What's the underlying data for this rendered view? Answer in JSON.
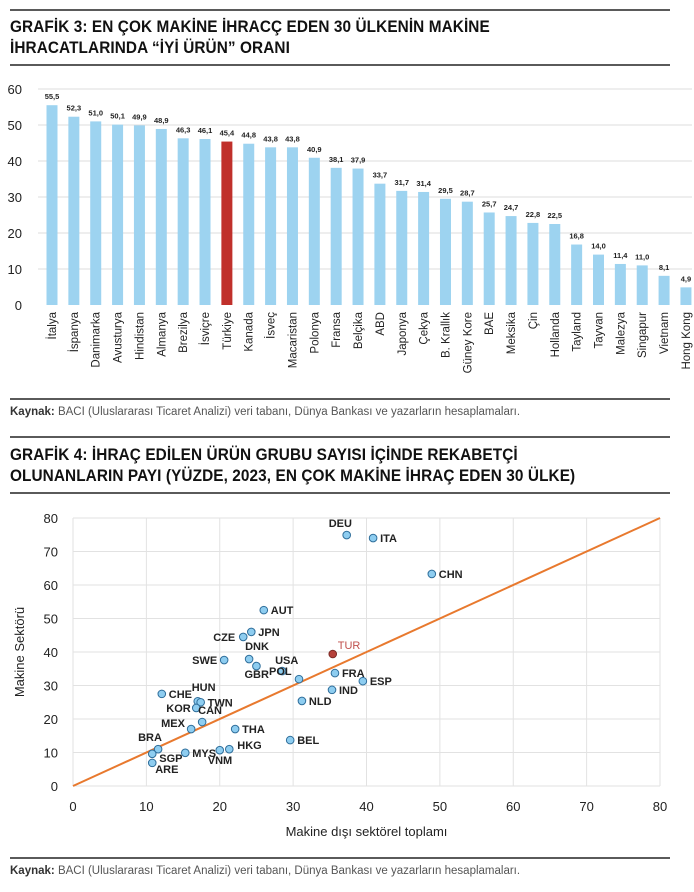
{
  "chart_data": [
    {
      "type": "bar",
      "title_line1": "GRAFİK 3: EN ÇOK MAKİNE İHRACÇ EDEN 30 ÜLKENİN MAKİNE",
      "title_line2": "İHRACATLARINDA “İYİ ÜRÜN” ORANI",
      "categories": [
        "İtalya",
        "İspanya",
        "Danimarka",
        "Avusturya",
        "Hindistan",
        "Almanya",
        "Brezilya",
        "İsviçre",
        "Türkiye",
        "Kanada",
        "İsveç",
        "Macaristan",
        "Polonya",
        "Fransa",
        "Belçika",
        "ABD",
        "Japonya",
        "Çekya",
        "B. Krallık",
        "Güney Kore",
        "BAE",
        "Meksika",
        "Çin",
        "Hollanda",
        "Tayland",
        "Tayvan",
        "Malezya",
        "Singapur",
        "Vietnam",
        "Hong Kong"
      ],
      "values": [
        55.5,
        52.3,
        51.0,
        50.1,
        49.9,
        48.9,
        46.3,
        46.1,
        45.4,
        44.8,
        43.8,
        43.8,
        40.9,
        38.1,
        37.9,
        33.7,
        31.7,
        31.4,
        29.5,
        28.7,
        25.7,
        24.7,
        22.8,
        22.5,
        16.8,
        14.0,
        11.4,
        11.0,
        8.1,
        4.9
      ],
      "data_labels": [
        "55,5",
        "52,3",
        "51,0",
        "50,1",
        "49,9",
        "48,9",
        "46,3",
        "46,1",
        "45,4",
        "44,8",
        "43,8",
        "43,8",
        "40,9",
        "38,1",
        "37,9",
        "33,7",
        "31,7",
        "31,4",
        "29,5",
        "28,7",
        "25,7",
        "24,7",
        "22,8",
        "22,5",
        "16,8",
        "14,0",
        "11,4",
        "11,0",
        "8,1",
        "4,9"
      ],
      "highlight": "Türkiye",
      "ylim": [
        0,
        60
      ],
      "yticks": [
        "0",
        "10",
        "20",
        "30",
        "40",
        "50",
        "60"
      ],
      "grid": true,
      "colors": {
        "bar": "#9dd3f0",
        "highlight": "#c0302b",
        "grid": "#dcdcdc"
      },
      "source_label": "Kaynak:",
      "source_text": " BACI (Uluslararası Ticaret Analizi) veri tabanı, Dünya Bankası ve yazarların hesaplamaları."
    },
    {
      "type": "scatter",
      "title_line1": "GRAFİK 4: İHRAÇ EDİLEN ÜRÜN GRUBU SAYISI İÇİNDE REKABETÇİ",
      "title_line2": "OLUNANLARIN PAYI (YÜZDE, 2023, EN ÇOK MAKİNE İHRAÇ EDEN 30 ÜLKE)",
      "xlabel": "Makine dışı sektörel toplamı",
      "ylabel": "Makine Sektörü",
      "xlim": [
        0,
        80
      ],
      "ylim": [
        0,
        80
      ],
      "xticks": [
        "0",
        "10",
        "20",
        "30",
        "40",
        "50",
        "60",
        "70",
        "80"
      ],
      "yticks": [
        "0",
        "10",
        "20",
        "30",
        "40",
        "50",
        "60",
        "70",
        "80"
      ],
      "grid": true,
      "trendline": {
        "from": [
          0,
          0
        ],
        "to": [
          80,
          80
        ],
        "color": "#e8792e"
      },
      "colors": {
        "point": "#8ecdf0",
        "point_edge": "#2e6d9a",
        "highlight": "#b5413a",
        "label": "#222222",
        "highlight_label": "#c0504d"
      },
      "highlight": "TUR",
      "points": [
        {
          "label": "DEU",
          "x": 37.3,
          "y": 74.9
        },
        {
          "label": "ITA",
          "x": 40.9,
          "y": 74.0
        },
        {
          "label": "CHN",
          "x": 48.9,
          "y": 63.3
        },
        {
          "label": "AUT",
          "x": 26.0,
          "y": 52.5
        },
        {
          "label": "JPN",
          "x": 24.3,
          "y": 46.0
        },
        {
          "label": "CZE",
          "x": 23.2,
          "y": 44.5
        },
        {
          "label": "SWE",
          "x": 20.6,
          "y": 37.6
        },
        {
          "label": "DNK",
          "x": 24.0,
          "y": 37.9
        },
        {
          "label": "GBR",
          "x": 25.0,
          "y": 35.8
        },
        {
          "label": "USA",
          "x": 28.5,
          "y": 34.3
        },
        {
          "label": "POL",
          "x": 30.8,
          "y": 31.9
        },
        {
          "label": "TUR",
          "x": 35.4,
          "y": 39.4
        },
        {
          "label": "FRA",
          "x": 35.7,
          "y": 33.7
        },
        {
          "label": "ESP",
          "x": 39.5,
          "y": 31.3
        },
        {
          "label": "IND",
          "x": 35.3,
          "y": 28.7
        },
        {
          "label": "NLD",
          "x": 31.2,
          "y": 25.4
        },
        {
          "label": "BEL",
          "x": 29.6,
          "y": 13.7
        },
        {
          "label": "CHE",
          "x": 12.1,
          "y": 27.5
        },
        {
          "label": "HUN",
          "x": 17.0,
          "y": 25.3
        },
        {
          "label": "TWN",
          "x": 17.4,
          "y": 25.0
        },
        {
          "label": "KOR",
          "x": 16.8,
          "y": 23.3
        },
        {
          "label": "CAN",
          "x": 17.6,
          "y": 19.1
        },
        {
          "label": "MEX",
          "x": 16.1,
          "y": 17.0
        },
        {
          "label": "THA",
          "x": 22.1,
          "y": 17.0
        },
        {
          "label": "BRA",
          "x": 11.6,
          "y": 11.0
        },
        {
          "label": "SGP",
          "x": 10.8,
          "y": 9.6
        },
        {
          "label": "ARE",
          "x": 10.8,
          "y": 6.9
        },
        {
          "label": "MYS",
          "x": 15.3,
          "y": 9.9
        },
        {
          "label": "VNM",
          "x": 20.0,
          "y": 10.7
        },
        {
          "label": "HKG",
          "x": 21.3,
          "y": 11.0
        }
      ],
      "source_label": "Kaynak:",
      "source_text": " BACI (Uluslararası Ticaret Analizi) veri tabanı, Dünya Bankası ve yazarların hesaplamaları."
    }
  ]
}
